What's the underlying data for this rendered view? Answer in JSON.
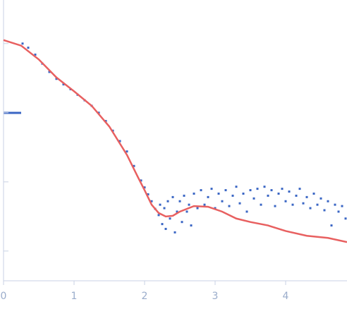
{
  "chart_data": {
    "type": "scatter",
    "xlim": [
      0,
      4.87
    ],
    "xticks": [
      0,
      1,
      2,
      3,
      4
    ],
    "ylim": [
      -3.43,
      0.63
    ],
    "yticks": [
      -3,
      -2,
      -1,
      0
    ],
    "series": [
      {
        "style": "markers",
        "color": "#3a66c4",
        "x": [
          0.27,
          0.35,
          0.45,
          0.55,
          0.65,
          0.75,
          0.85,
          0.95,
          1.05,
          1.15,
          1.25,
          1.35,
          1.45,
          1.55,
          1.65,
          1.75,
          1.85,
          1.95,
          2.0,
          2.05,
          2.1,
          2.15,
          2.2,
          2.22,
          2.25,
          2.28,
          2.3,
          2.33,
          2.36,
          2.4,
          2.43,
          2.46,
          2.5,
          2.53,
          2.56,
          2.6,
          2.63,
          2.66,
          2.7,
          2.75,
          2.8,
          2.85,
          2.9,
          2.95,
          3.0,
          3.05,
          3.1,
          3.15,
          3.2,
          3.25,
          3.3,
          3.35,
          3.4,
          3.45,
          3.5,
          3.55,
          3.6,
          3.65,
          3.7,
          3.75,
          3.8,
          3.85,
          3.9,
          3.95,
          4.0,
          4.05,
          4.1,
          4.15,
          4.2,
          4.25,
          4.3,
          4.35,
          4.4,
          4.45,
          4.5,
          4.55,
          4.6,
          4.65,
          4.7,
          4.75,
          4.8,
          4.85
        ],
        "values": [
          0,
          -0.06,
          -0.16,
          -0.29,
          -0.41,
          -0.51,
          -0.59,
          -0.66,
          -0.74,
          -0.82,
          -0.9,
          -1.0,
          -1.12,
          -1.26,
          -1.41,
          -1.56,
          -1.77,
          -1.98,
          -2.08,
          -2.18,
          -2.28,
          -2.39,
          -2.48,
          -2.33,
          -2.61,
          -2.38,
          -2.68,
          -2.28,
          -2.53,
          -2.22,
          -2.73,
          -2.43,
          -2.28,
          -2.58,
          -2.2,
          -2.43,
          -2.33,
          -2.63,
          -2.17,
          -2.38,
          -2.12,
          -2.33,
          -2.22,
          -2.1,
          -2.38,
          -2.17,
          -2.28,
          -2.12,
          -2.35,
          -2.2,
          -2.07,
          -2.31,
          -2.17,
          -2.43,
          -2.12,
          -2.24,
          -2.1,
          -2.33,
          -2.07,
          -2.2,
          -2.12,
          -2.35,
          -2.17,
          -2.1,
          -2.28,
          -2.14,
          -2.33,
          -2.2,
          -2.1,
          -2.31,
          -2.22,
          -2.38,
          -2.17,
          -2.33,
          -2.24,
          -2.41,
          -2.28,
          -2.63,
          -2.33,
          -2.43,
          -2.35,
          -2.53
        ]
      },
      {
        "style": "line",
        "color": "#e86060",
        "x": [
          0,
          0.25,
          0.5,
          0.75,
          1.0,
          1.25,
          1.5,
          1.75,
          1.9,
          2.0,
          2.1,
          2.2,
          2.3,
          2.4,
          2.5,
          2.7,
          2.9,
          3.1,
          3.3,
          3.5,
          3.75,
          4.0,
          4.3,
          4.6,
          4.87
        ],
        "values": [
          0.05,
          -0.03,
          -0.23,
          -0.49,
          -0.69,
          -0.9,
          -1.2,
          -1.61,
          -1.92,
          -2.12,
          -2.33,
          -2.45,
          -2.5,
          -2.49,
          -2.43,
          -2.35,
          -2.36,
          -2.43,
          -2.53,
          -2.58,
          -2.63,
          -2.71,
          -2.78,
          -2.81,
          -2.87
        ]
      }
    ]
  }
}
